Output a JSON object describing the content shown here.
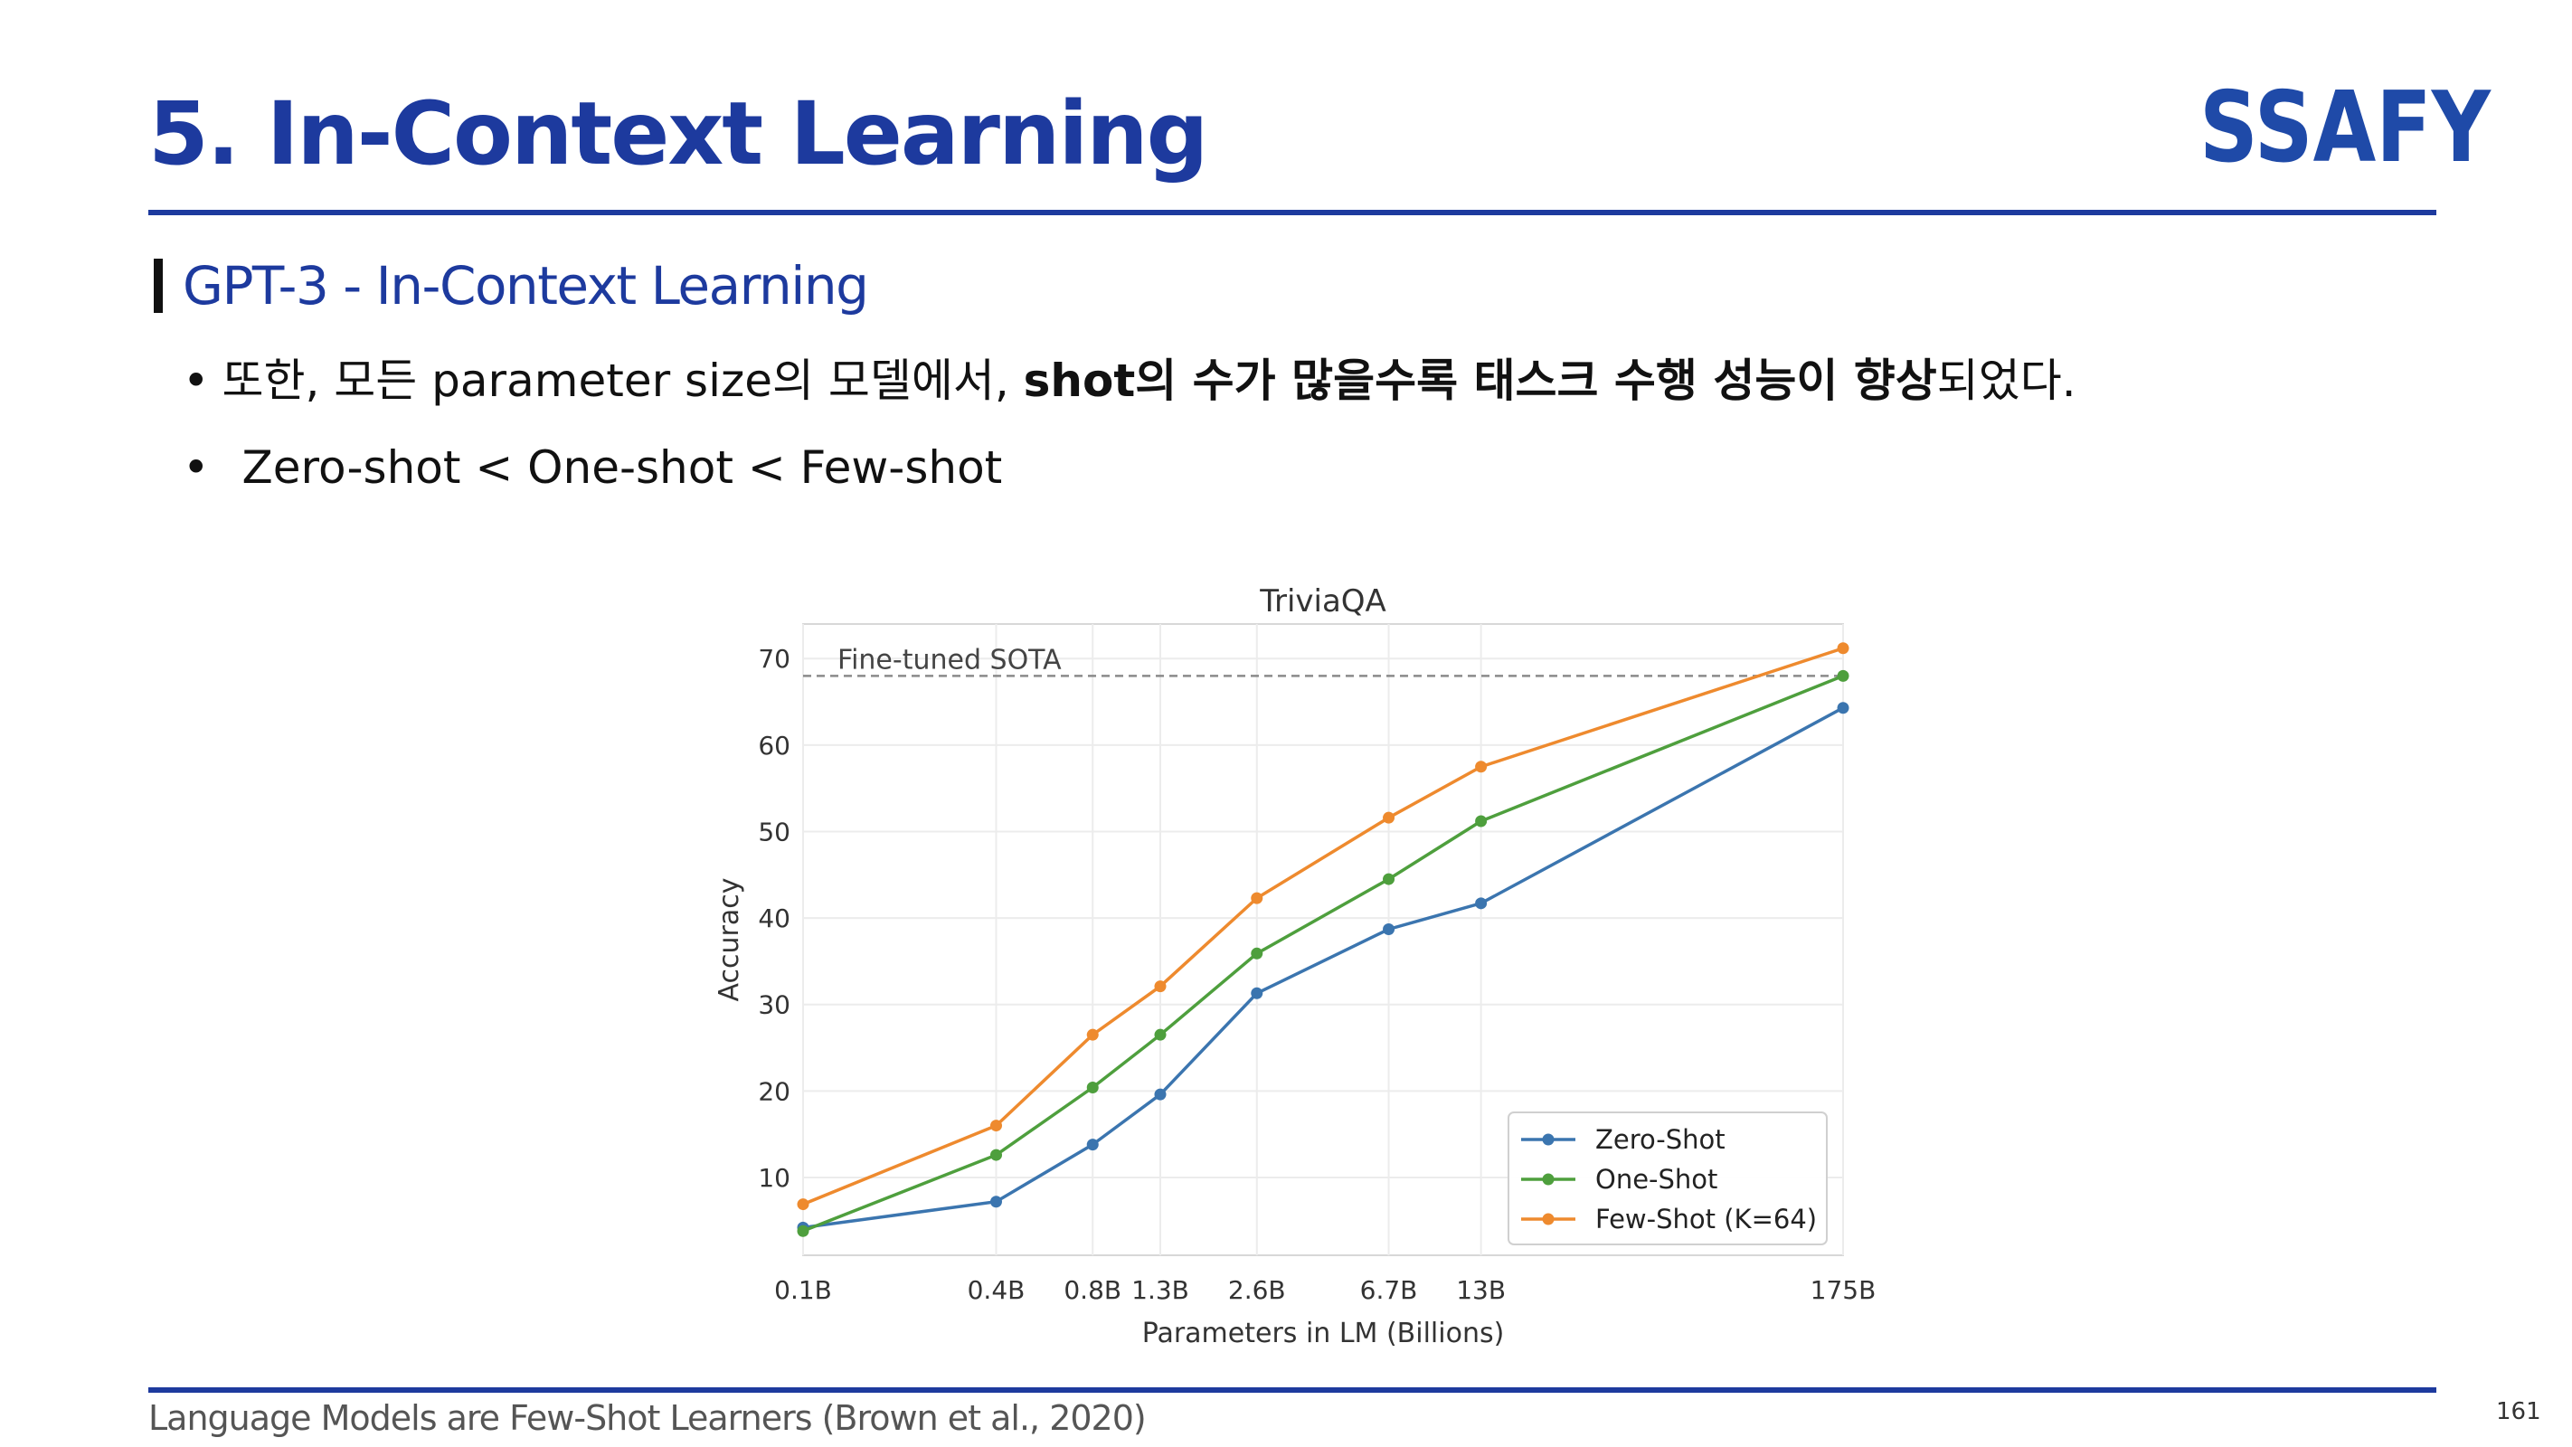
{
  "slide": {
    "title": "5. In-Context Learning",
    "logo_text": "SSAFY",
    "section_title": "GPT-3 - In-Context Learning",
    "bullets": [
      {
        "dot": "•",
        "normal_prefix": "또한, 모든 parameter size의 모델에서, ",
        "bold": "shot의 수가 많을수록 태스크 수행 성능이 향상",
        "normal_suffix": "되었다."
      },
      {
        "dot": "•",
        "text": "Zero-shot < One-shot < Few-shot"
      }
    ],
    "footer": "Language Models are Few-Shot Learners (Brown et al., 2020)",
    "page_number": "161"
  },
  "colors": {
    "primary": "#1d3a9e",
    "logo_blue": "#1f4aa8",
    "zero_shot": "#3b75af",
    "one_shot": "#4e9f3d",
    "few_shot": "#ee8a2e"
  },
  "chart_data": {
    "type": "line",
    "title": "TriviaQA",
    "xlabel": "Parameters in LM (Billions)",
    "ylabel": "Accuracy",
    "categories": [
      "0.1B",
      "0.4B",
      "0.8B",
      "1.3B",
      "2.6B",
      "6.7B",
      "13B",
      "175B"
    ],
    "x": [
      0.1,
      0.4,
      0.8,
      1.3,
      2.6,
      6.7,
      13,
      175
    ],
    "xscale": "log",
    "ylim": [
      1,
      74
    ],
    "yticks": [
      10,
      20,
      30,
      40,
      50,
      60,
      70
    ],
    "grid": true,
    "reference_line": {
      "label": "Fine-tuned SOTA",
      "y": 68
    },
    "legend_position": "bottom-right",
    "series": [
      {
        "name": "Zero-Shot",
        "color": "#3b75af",
        "values": [
          4.2,
          7.2,
          13.8,
          19.6,
          31.3,
          38.7,
          41.7,
          64.3
        ]
      },
      {
        "name": "One-Shot",
        "color": "#4e9f3d",
        "values": [
          3.8,
          12.6,
          20.4,
          26.5,
          35.9,
          44.5,
          51.2,
          68.0
        ]
      },
      {
        "name": "Few-Shot (K=64)",
        "color": "#ee8a2e",
        "values": [
          6.9,
          16.0,
          26.5,
          32.1,
          42.3,
          51.6,
          57.5,
          71.2
        ]
      }
    ]
  }
}
